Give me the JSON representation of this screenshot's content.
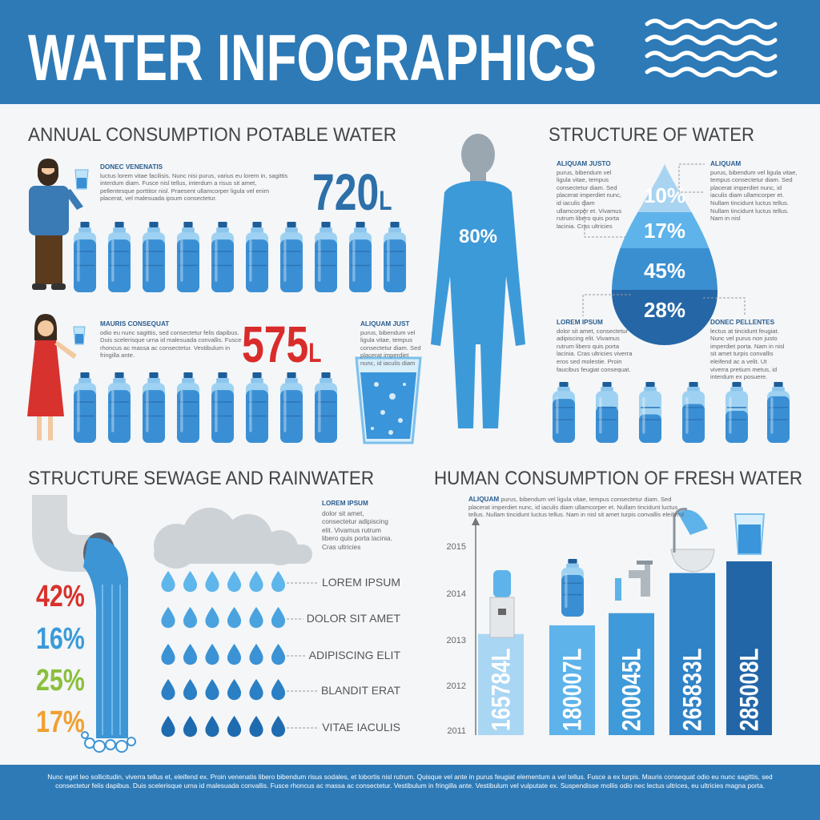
{
  "header": {
    "title": "WATER INFOGRAPHICS"
  },
  "annual": {
    "title": "ANNUAL CONSUMPTION POTABLE WATER",
    "people": [
      {
        "heading": "DONEC VENENATIS",
        "text": "luctus lorem vitae facilisis. Nunc nisi purus, varius eu lorem in, sagittis interdum diam. Fusce nisl tellus, interdum a risus sit amet, pellentesque porttitor nisl. Praesent ullamcorper ligula vel enim placerat, vel malesuada ipsum consectetur.",
        "amount": 720,
        "unit": "L"
      },
      {
        "heading": "MAURIS CONSEQUAT",
        "text": "odio eu nunc sagittis, sed consectetur felis dapibus. Duis scelerisque urna id malesuada convallis. Fusce rhoncus ac massa ac consectetur. Vestibulum in fringilla ante.",
        "amount": 575,
        "unit": "L"
      }
    ],
    "glass": {
      "heading": "ALIQUAM JUST",
      "text": "purus, bibendum vel ligula vitae, tempus consectetur diam. Sed placerat imperdiet nunc, id iaculis diam"
    }
  },
  "structure": {
    "title": "STRUCTURE OF WATER",
    "body": "80%",
    "layers": [
      "10%",
      "17%",
      "45%",
      "28%"
    ],
    "notes": [
      {
        "heading": "ALIQUAM JUSTO",
        "text": "purus, bibendum vel ligula vitae, tempus consectetur diam. Sed placerat imperdiet nunc, id iaculis diam ullamcorper et. Vivamus rutrum libero quis porta lacinia. Cras ultricies"
      },
      {
        "heading": "ALIQUAM",
        "text": "purus, bibendum vel ligula vitae, tempus consectetur diam. Sed placerat imperdiet nunc, id iaculis diam ullamcorper et. Nullam tincidunt luctus tellus. Nullam tincidunt luctus tellus. Nam in nisl"
      },
      {
        "heading": "LOREM IPSUM",
        "text": "dolor sit amet, consectetur adipiscing elit. Vivamus rutrum libero quis porta lacinia. Cras ultricies viverra eros sed molestie. Proin faucibus feugiat consequat."
      },
      {
        "heading": "DONEC PELLENTES",
        "text": "lectus at tincidunt feugiat. Nunc vel purus non justo imperdiet porta. Nam in nisl sit amet turpis convallis eleifend ac a velit. Ut viverra pretium metus, id interdum ex posuere."
      }
    ]
  },
  "sewage": {
    "title": "STRUCTURE SEWAGE AND RAINWATER",
    "shares": [
      {
        "label": "42%",
        "color": "#d9312b"
      },
      {
        "label": "16%",
        "color": "#3a9ad9"
      },
      {
        "label": "25%",
        "color": "#8bbf3b"
      },
      {
        "label": "17%",
        "color": "#f0a030"
      }
    ],
    "note": {
      "heading": "LOREM IPSUM",
      "text": "dolor sit amet, consectetur adipiscing elit. Vivamus rutrum libero quis porta lacinia. Cras ultricies"
    },
    "rows": [
      "LOREM IPSUM",
      "DOLOR SIT AMET",
      "ADIPISCING ELIT",
      "BLANDIT ERAT",
      "VITAE IACULIS"
    ]
  },
  "consumption": {
    "title": "HUMAN CONSUMPTION OF FRESH WATER",
    "note": {
      "heading": "ALIQUAM",
      "text": "purus, bibendum vel ligula vitae, tempus consectetur diam. Sed placerat imperdiet nunc, id iaculis diam ullamcorper et. Nullam tincidunt luctus tellus.  Nullam tincidunt luctus tellus. Nam in nisl sit amet turpis convallis eleifend"
    },
    "years": [
      "2015",
      "2014",
      "2013",
      "2012",
      "2011"
    ],
    "values": [
      165784,
      180007,
      200045,
      265833,
      285008
    ],
    "unit": "L",
    "colors": [
      "#a9d6f3",
      "#5db3ea",
      "#3f9ad9",
      "#2f83c6",
      "#2266a8"
    ]
  },
  "footer": {
    "text": "Nunc eget leo sollicitudin, viverra tellus et, eleifend ex. Proin venenatis libero bibendum risus sodales, et lobortis nisl rutrum. Quisque vel ante in purus feugiat elementum a vel tellus. Fusce a ex turpis. Mauris consequat odio eu nunc sagittis, sed consectetur felis dapibus. Duis scelerisque urna id malesuada convallis. Fusce rhoncus ac massa ac consectetur. Vestibulum in fringilla ante. Vestibulum vel vulputate ex. Suspendisse mollis odio nec lectus ultrices, eu ultricies magna porta."
  }
}
